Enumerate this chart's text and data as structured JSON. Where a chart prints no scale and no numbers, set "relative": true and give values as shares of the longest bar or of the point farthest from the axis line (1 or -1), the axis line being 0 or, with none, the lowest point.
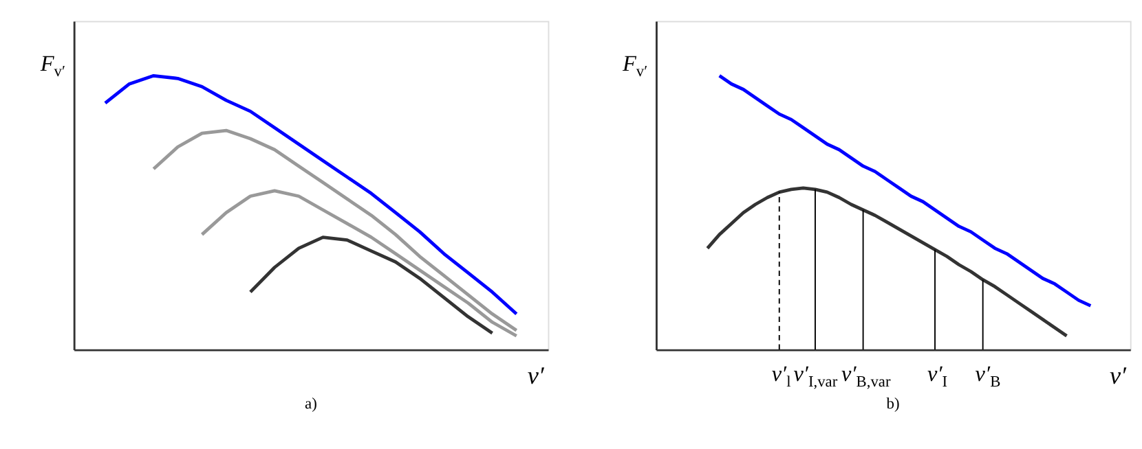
{
  "chart_data": [
    {
      "type": "line",
      "relative": true,
      "title": "a)",
      "xlabel": "v′",
      "ylabel": "F$_{v′}$",
      "grid": false,
      "line_style": "solid",
      "marker": "none",
      "categories": [
        null,
        null,
        null,
        null,
        null,
        null,
        null,
        null,
        null,
        null,
        null,
        null,
        null,
        null,
        null,
        null,
        null,
        null,
        null,
        null
      ],
      "series": [
        {
          "color": "#0000ff",
          "values": [
            null,
            0.9,
            0.97,
            1.0,
            0.99,
            0.96,
            0.91,
            0.87,
            0.81,
            0.75,
            0.69,
            0.63,
            0.57,
            0.5,
            0.43,
            0.35,
            0.28,
            0.21,
            0.13,
            null
          ]
        },
        {
          "color": "#999999",
          "values": [
            null,
            null,
            null,
            0.66,
            0.74,
            0.79,
            0.8,
            0.77,
            0.73,
            0.67,
            0.61,
            0.55,
            0.49,
            0.42,
            0.34,
            0.27,
            0.2,
            0.13,
            0.07,
            null
          ]
        },
        {
          "color": "#999999",
          "values": [
            null,
            null,
            null,
            null,
            null,
            0.42,
            0.5,
            0.56,
            0.58,
            0.56,
            0.51,
            0.46,
            0.41,
            0.35,
            0.29,
            0.23,
            0.17,
            0.1,
            0.05,
            null
          ]
        },
        {
          "color": "#333333",
          "values": [
            null,
            null,
            null,
            null,
            null,
            null,
            null,
            0.21,
            0.3,
            0.37,
            0.41,
            0.4,
            0.36,
            0.32,
            0.26,
            0.19,
            0.12,
            0.06,
            null,
            null
          ]
        }
      ]
    },
    {
      "type": "line",
      "relative": true,
      "title": "b)",
      "xlabel": "v′",
      "ylabel": "F$_{v′}$",
      "grid": false,
      "line_style": "solid",
      "marker": "none",
      "categories": [
        null,
        null,
        null,
        null,
        null,
        null,
        null,
        null,
        null,
        null,
        "v′$_{l}$",
        null,
        null,
        "v′$_{I,var}$",
        null,
        null,
        null,
        "v′$_{B,var}$",
        null,
        null,
        null,
        null,
        null,
        "v′$_{I}$",
        null,
        null,
        null,
        "v′$_{B}$",
        null,
        null,
        null,
        null,
        null,
        null,
        null,
        null,
        null,
        null,
        null,
        null
      ],
      "series": [
        {
          "color": "#0000ff",
          "values": [
            null,
            null,
            null,
            null,
            null,
            1.0,
            0.97,
            0.95,
            0.92,
            0.89,
            0.86,
            0.84,
            0.81,
            0.78,
            0.75,
            0.73,
            0.7,
            0.67,
            0.65,
            0.62,
            0.59,
            0.56,
            0.54,
            0.51,
            0.48,
            0.45,
            0.43,
            0.4,
            0.37,
            0.35,
            0.32,
            0.29,
            0.26,
            0.24,
            0.21,
            0.18,
            0.16,
            null,
            null,
            null
          ]
        },
        {
          "color": "#333333",
          "values": [
            null,
            null,
            null,
            null,
            0.37,
            0.42,
            0.46,
            0.5,
            0.53,
            0.555,
            0.575,
            0.585,
            0.59,
            0.585,
            0.575,
            0.555,
            0.53,
            0.51,
            0.49,
            0.465,
            0.44,
            0.415,
            0.39,
            0.365,
            0.34,
            0.31,
            0.285,
            0.255,
            0.23,
            0.2,
            0.17,
            0.14,
            0.11,
            0.08,
            0.05,
            null,
            null,
            null,
            null,
            null
          ]
        }
      ],
      "ref_lines": [
        {
          "axis": "x",
          "value": "v′$_{l}$",
          "line_style": "dashed",
          "color": "#000000"
        },
        {
          "axis": "x",
          "value": "v′$_{I,var}$",
          "line_style": "solid",
          "color": "#000000"
        },
        {
          "axis": "x",
          "value": "v′$_{B,var}$",
          "line_style": "solid",
          "color": "#000000"
        },
        {
          "axis": "x",
          "value": "v′$_{I}$",
          "line_style": "solid",
          "color": "#000000"
        },
        {
          "axis": "x",
          "value": "v′$_{B}$",
          "line_style": "solid",
          "color": "#000000"
        }
      ]
    }
  ]
}
